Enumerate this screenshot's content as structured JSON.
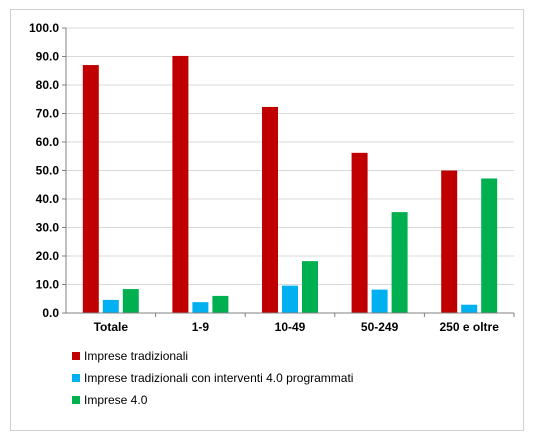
{
  "chart_data": {
    "type": "bar",
    "categories": [
      "Totale",
      "1-9",
      "10-49",
      "50-249",
      "250 e oltre"
    ],
    "series": [
      {
        "name": "Imprese tradizionali",
        "color": "#c00000",
        "values": [
          87.0,
          90.2,
          72.3,
          56.2,
          50.0
        ]
      },
      {
        "name": "Imprese tradizionali con interventi 4.0 programmati",
        "color": "#00b0f0",
        "values": [
          4.6,
          3.8,
          9.6,
          8.2,
          2.9
        ]
      },
      {
        "name": "Imprese 4.0",
        "color": "#00b050",
        "values": [
          8.4,
          6.0,
          18.2,
          35.4,
          47.2
        ]
      }
    ],
    "ylim": [
      0,
      100
    ],
    "yticks": [
      "0.0",
      "10.0",
      "20.0",
      "30.0",
      "40.0",
      "50.0",
      "60.0",
      "70.0",
      "80.0",
      "90.0",
      "100.0"
    ],
    "grid": true,
    "legend_position": "bottom-left"
  }
}
